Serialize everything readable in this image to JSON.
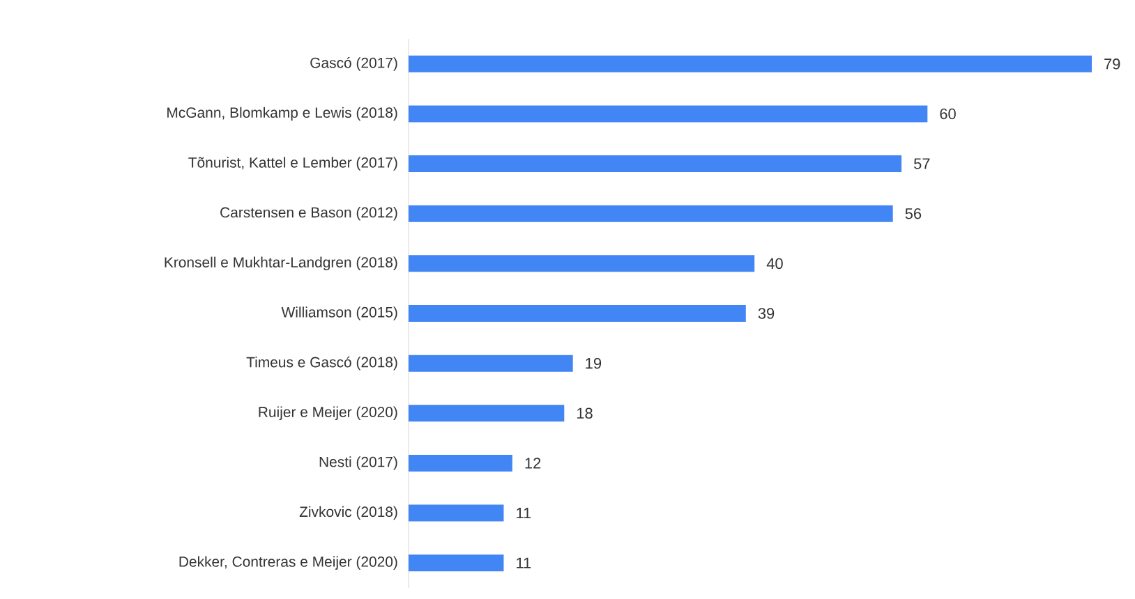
{
  "chart_data": {
    "type": "bar",
    "orientation": "horizontal",
    "data_labels": true,
    "color": "#4285f4",
    "categories": [
      "Gascó (2017)",
      "McGann, Blomkamp e Lewis (2018)",
      "Tõnurist, Kattel e Lember (2017)",
      "Carstensen e Bason (2012)",
      "Kronsell e Mukhtar-Landgren (2018)",
      "Williamson (2015)",
      "Timeus e Gascó (2018)",
      "Ruijer e Meijer (2020)",
      "Nesti (2017)",
      "Zivkovic (2018)",
      "Dekker, Contreras e Meijer (2020)"
    ],
    "values": [
      79,
      60,
      57,
      56,
      40,
      39,
      19,
      18,
      12,
      11,
      11
    ]
  }
}
